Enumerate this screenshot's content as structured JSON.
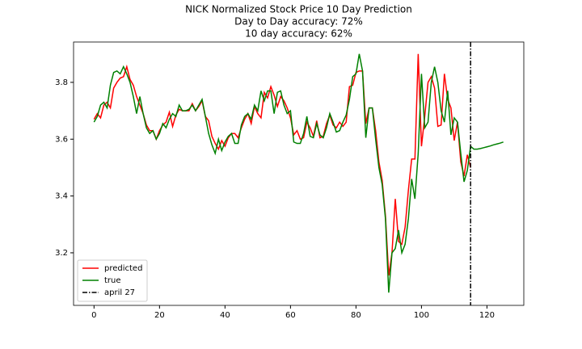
{
  "chart_data": {
    "type": "line",
    "title": "NICK Normalized Stock Price 10 Day Prediction",
    "subtitle": [
      "Day to Day accuracy: 72%",
      "10 day accuracy: 62%"
    ],
    "x": [
      0,
      1,
      2,
      3,
      4,
      5,
      6,
      7,
      8,
      9,
      10,
      11,
      12,
      13,
      14,
      15,
      16,
      17,
      18,
      19,
      20,
      21,
      22,
      23,
      24,
      25,
      26,
      27,
      28,
      29,
      30,
      31,
      32,
      33,
      34,
      35,
      36,
      37,
      38,
      39,
      40,
      41,
      42,
      43,
      44,
      45,
      46,
      47,
      48,
      49,
      50,
      51,
      52,
      53,
      54,
      55,
      56,
      57,
      58,
      59,
      60,
      61,
      62,
      63,
      64,
      65,
      66,
      67,
      68,
      69,
      70,
      71,
      72,
      73,
      74,
      75,
      76,
      77,
      78,
      79,
      80,
      81,
      82,
      83,
      84,
      85,
      86,
      87,
      88,
      89,
      90,
      91,
      92,
      93,
      94,
      95,
      96,
      97,
      98,
      99,
      100,
      101,
      102,
      103,
      104,
      105,
      106,
      107,
      108,
      109,
      110,
      111,
      112,
      113,
      114,
      115,
      116,
      117,
      118,
      119,
      120,
      121,
      122,
      123,
      124,
      125
    ],
    "series": [
      {
        "name": "predicted",
        "color": "#ff0000",
        "values": [
          3.67,
          3.69,
          3.675,
          3.72,
          3.73,
          3.71,
          3.78,
          3.8,
          3.815,
          3.82,
          3.855,
          3.81,
          3.79,
          3.75,
          3.72,
          3.69,
          3.65,
          3.63,
          3.63,
          3.6,
          3.63,
          3.65,
          3.66,
          3.695,
          3.645,
          3.685,
          3.705,
          3.7,
          3.7,
          3.7,
          3.725,
          3.7,
          3.715,
          3.735,
          3.68,
          3.665,
          3.61,
          3.585,
          3.565,
          3.595,
          3.575,
          3.605,
          3.62,
          3.62,
          3.605,
          3.64,
          3.67,
          3.69,
          3.655,
          3.715,
          3.69,
          3.675,
          3.765,
          3.745,
          3.785,
          3.755,
          3.715,
          3.75,
          3.735,
          3.71,
          3.675,
          3.615,
          3.63,
          3.6,
          3.605,
          3.66,
          3.64,
          3.61,
          3.665,
          3.605,
          3.61,
          3.655,
          3.685,
          3.65,
          3.64,
          3.66,
          3.645,
          3.66,
          3.785,
          3.79,
          3.835,
          3.84,
          3.84,
          3.655,
          3.71,
          3.71,
          3.63,
          3.52,
          3.455,
          3.33,
          3.12,
          3.2,
          3.39,
          3.24,
          3.23,
          3.29,
          3.42,
          3.53,
          3.53,
          3.9,
          3.575,
          3.68,
          3.8,
          3.82,
          3.78,
          3.645,
          3.65,
          3.83,
          3.74,
          3.71,
          3.595,
          3.66,
          3.52,
          3.47,
          3.545,
          3.5,
          null,
          null,
          null,
          null,
          null,
          null,
          null,
          null,
          null,
          null
        ]
      },
      {
        "name": "true",
        "color": "#008000",
        "values": [
          3.66,
          3.68,
          3.72,
          3.73,
          3.71,
          3.79,
          3.835,
          3.84,
          3.83,
          3.855,
          3.83,
          3.8,
          3.75,
          3.69,
          3.75,
          3.69,
          3.64,
          3.62,
          3.63,
          3.6,
          3.62,
          3.655,
          3.64,
          3.67,
          3.69,
          3.68,
          3.72,
          3.7,
          3.7,
          3.705,
          3.72,
          3.7,
          3.72,
          3.74,
          3.68,
          3.62,
          3.58,
          3.55,
          3.6,
          3.56,
          3.59,
          3.61,
          3.62,
          3.585,
          3.585,
          3.65,
          3.68,
          3.69,
          3.67,
          3.72,
          3.7,
          3.77,
          3.735,
          3.77,
          3.77,
          3.69,
          3.765,
          3.77,
          3.72,
          3.69,
          3.7,
          3.59,
          3.585,
          3.585,
          3.62,
          3.68,
          3.61,
          3.605,
          3.655,
          3.615,
          3.605,
          3.64,
          3.69,
          3.66,
          3.625,
          3.63,
          3.66,
          3.685,
          3.74,
          3.82,
          3.83,
          3.9,
          3.84,
          3.605,
          3.71,
          3.71,
          3.6,
          3.5,
          3.44,
          3.32,
          3.06,
          3.2,
          3.215,
          3.28,
          3.2,
          3.23,
          3.32,
          3.46,
          3.39,
          3.55,
          3.83,
          3.64,
          3.66,
          3.8,
          3.855,
          3.8,
          3.7,
          3.66,
          3.77,
          3.615,
          3.675,
          3.66,
          3.55,
          3.45,
          3.49,
          3.575,
          3.565,
          3.565,
          3.567,
          3.57,
          3.573,
          3.576,
          3.58,
          3.583,
          3.586,
          3.59
        ]
      }
    ],
    "vline": {
      "name": "april 27",
      "x": 115,
      "color": "#000000"
    },
    "xlim": [
      -6.25,
      131.25
    ],
    "xticks": [
      0,
      20,
      40,
      60,
      80,
      100,
      120
    ],
    "ylim": [
      3.015,
      3.942
    ],
    "yticks": [
      3.2,
      3.4,
      3.6,
      3.8
    ],
    "legend": "lower left"
  }
}
